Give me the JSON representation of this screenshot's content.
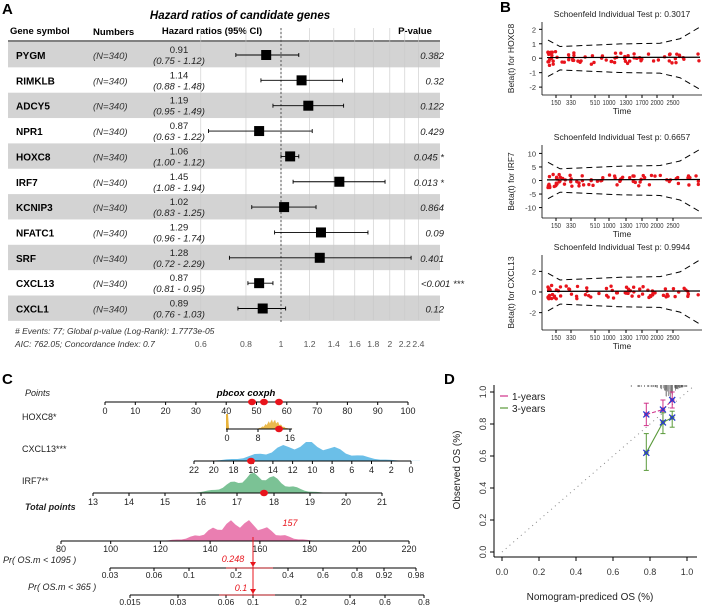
{
  "panel_labels": {
    "a": "A",
    "b": "B",
    "c": "C",
    "d": "D"
  },
  "chart_data": [
    {
      "type": "forest",
      "panel": "A",
      "title": "Hazard ratios of candidate genes",
      "headers": [
        "Gene symbol",
        "Numbers",
        "Hazard ratios (95% CI)",
        "P-value"
      ],
      "scale": "log",
      "reference_line": 1,
      "xticks": [
        0.6,
        0.8,
        1,
        1.2,
        1.4,
        1.6,
        1.8,
        2,
        2.2,
        2.4
      ],
      "rows": [
        {
          "gene": "PYGM",
          "n": "(N=340)",
          "hr": 0.91,
          "lo": 0.75,
          "hi": 1.12,
          "hr_text": "0.91",
          "ci_text": "(0.75 - 1.12)",
          "p": "0.382"
        },
        {
          "gene": "RIMKLB",
          "n": "(N=340)",
          "hr": 1.14,
          "lo": 0.88,
          "hi": 1.48,
          "hr_text": "1.14",
          "ci_text": "(0.88 - 1.48)",
          "p": "0.32"
        },
        {
          "gene": "ADCY5",
          "n": "(N=340)",
          "hr": 1.19,
          "lo": 0.95,
          "hi": 1.49,
          "hr_text": "1.19",
          "ci_text": "(0.95 - 1.49)",
          "p": "0.122"
        },
        {
          "gene": "NPR1",
          "n": "(N=340)",
          "hr": 0.87,
          "lo": 0.63,
          "hi": 1.22,
          "hr_text": "0.87",
          "ci_text": "(0.63 - 1.22)",
          "p": "0.429"
        },
        {
          "gene": "HOXC8",
          "n": "(N=340)",
          "hr": 1.06,
          "lo": 1.0,
          "hi": 1.12,
          "hr_text": "1.06",
          "ci_text": "(1.00 - 1.12)",
          "p": "0.045 *"
        },
        {
          "gene": "IRF7",
          "n": "(N=340)",
          "hr": 1.45,
          "lo": 1.08,
          "hi": 1.94,
          "hr_text": "1.45",
          "ci_text": "(1.08 - 1.94)",
          "p": "0.013 *"
        },
        {
          "gene": "KCNIP3",
          "n": "(N=340)",
          "hr": 1.02,
          "lo": 0.83,
          "hi": 1.25,
          "hr_text": "1.02",
          "ci_text": "(0.83 - 1.25)",
          "p": "0.864"
        },
        {
          "gene": "NFATC1",
          "n": "(N=340)",
          "hr": 1.29,
          "lo": 0.96,
          "hi": 1.74,
          "hr_text": "1.29",
          "ci_text": "(0.96 - 1.74)",
          "p": "0.09"
        },
        {
          "gene": "SRF",
          "n": "(N=340)",
          "hr": 1.28,
          "lo": 0.72,
          "hi": 2.29,
          "hr_text": "1.28",
          "ci_text": "(0.72 - 2.29)",
          "p": "0.401"
        },
        {
          "gene": "CXCL13",
          "n": "(N=340)",
          "hr": 0.87,
          "lo": 0.81,
          "hi": 0.95,
          "hr_text": "0.87",
          "ci_text": "(0.81 - 0.95)",
          "p": "<0.001 ***"
        },
        {
          "gene": "CXCL1",
          "n": "(N=340)",
          "hr": 0.89,
          "lo": 0.76,
          "hi": 1.03,
          "hr_text": "0.89",
          "ci_text": "(0.76 - 1.03)",
          "p": "0.12"
        }
      ],
      "footnotes": [
        "# Events: 77; Global p-value (Log-Rank): 1.7773e-05",
        "AIC: 762.05; Concordance Index: 0.7"
      ],
      "colors": {
        "band": "#d3d3d3",
        "marker": "#000000"
      }
    },
    {
      "type": "scatter",
      "panel": "B",
      "xlabel": "Time",
      "xticks": [
        "150",
        "330",
        "510",
        "1000",
        "1300",
        "1700",
        "2000",
        "2500"
      ],
      "plots": [
        {
          "title": "Schoenfeld Individual Test p: 0.3017",
          "ylabel": "Beta(t) for HOXC8",
          "yticks": [
            -2,
            -1,
            0,
            1,
            2
          ],
          "ylim": [
            -2.2,
            2.3
          ]
        },
        {
          "title": "Schoenfeld Individual Test p: 0.6657",
          "ylabel": "Beta(t) for IRF7",
          "yticks": [
            -10,
            -5,
            0,
            5,
            10
          ],
          "ylim": [
            -12,
            12
          ]
        },
        {
          "title": "Schoenfeld Individual Test p: 0.9944",
          "ylabel": "Beta(t) for CXCL13",
          "yticks": [
            -2,
            0,
            2
          ],
          "ylim": [
            -3.2,
            3.3
          ]
        }
      ],
      "colors": {
        "points": "#e8141c",
        "fit": "#000000"
      }
    },
    {
      "type": "nomogram",
      "panel": "C",
      "title": "pbcox coxph",
      "axes": [
        {
          "label": "Points",
          "ticks": [
            "0",
            "10",
            "20",
            "30",
            "40",
            "50",
            "60",
            "70",
            "80",
            "90",
            "100"
          ]
        },
        {
          "label": "HOXC8*",
          "ticks": [
            "0",
            "8",
            "16"
          ],
          "selected": 13
        },
        {
          "label": "CXCL13***",
          "ticks": [
            "22",
            "20",
            "18",
            "16",
            "14",
            "12",
            "10",
            "8",
            "6",
            "4",
            "2",
            "0"
          ],
          "selected": 16
        },
        {
          "label": "IRF7**",
          "ticks": [
            "13",
            "14",
            "15",
            "16",
            "17",
            "18",
            "19",
            "20",
            "21"
          ],
          "selected": 17.7
        },
        {
          "label": "Total points",
          "ticks": [
            "80",
            "100",
            "120",
            "140",
            "160",
            "180",
            "200",
            "220"
          ],
          "selected": 157,
          "selected_label": "157"
        },
        {
          "label": "Pr( OS.m < 1095 )",
          "ticks": [
            "0.03",
            "0.06",
            "0.1",
            "0.2",
            "0.4",
            "0.6",
            "0.8",
            "0.92",
            "0.98"
          ],
          "selected_label": "0.248"
        },
        {
          "label": "Pr( OS.m < 365 )",
          "ticks": [
            "0.015",
            "0.03",
            "0.06",
            "0.1",
            "0.2",
            "0.4",
            "0.6",
            "0.8"
          ],
          "selected_label": "0.1"
        }
      ],
      "colors": {
        "HOXC8": "#e8b23a",
        "CXCL13": "#5bb8e6",
        "IRF7": "#6dbb8a",
        "total": "#e870a8",
        "highlight": "#e8141c"
      }
    },
    {
      "type": "line",
      "panel": "D",
      "xlabel": "Nomogram-prediced OS (%)",
      "ylabel": "Observed OS (%)",
      "xlim": [
        0,
        1
      ],
      "ylim": [
        0,
        1
      ],
      "xticks": [
        "0.0",
        "0.2",
        "0.4",
        "0.6",
        "0.8",
        "1.0"
      ],
      "yticks": [
        "0.0",
        "0.2",
        "0.4",
        "0.6",
        "0.8",
        "1.0"
      ],
      "legend_position": "top-left",
      "series": [
        {
          "name": "1-years",
          "color": "#d0338a",
          "x": [
            0.78,
            0.87,
            0.92
          ],
          "y": [
            0.86,
            0.89,
            0.95
          ],
          "lo": [
            0.79,
            0.82,
            0.9
          ],
          "hi": [
            0.93,
            0.95,
            1.0
          ]
        },
        {
          "name": "3-years",
          "color": "#5a9a3a",
          "x": [
            0.78,
            0.87,
            0.92
          ],
          "y": [
            0.62,
            0.81,
            0.84
          ],
          "lo": [
            0.51,
            0.74,
            0.78
          ],
          "hi": [
            0.74,
            0.87,
            0.88
          ]
        }
      ],
      "ideal_line": "dotted diagonal",
      "marker_color": "#2a3ad0"
    }
  ]
}
